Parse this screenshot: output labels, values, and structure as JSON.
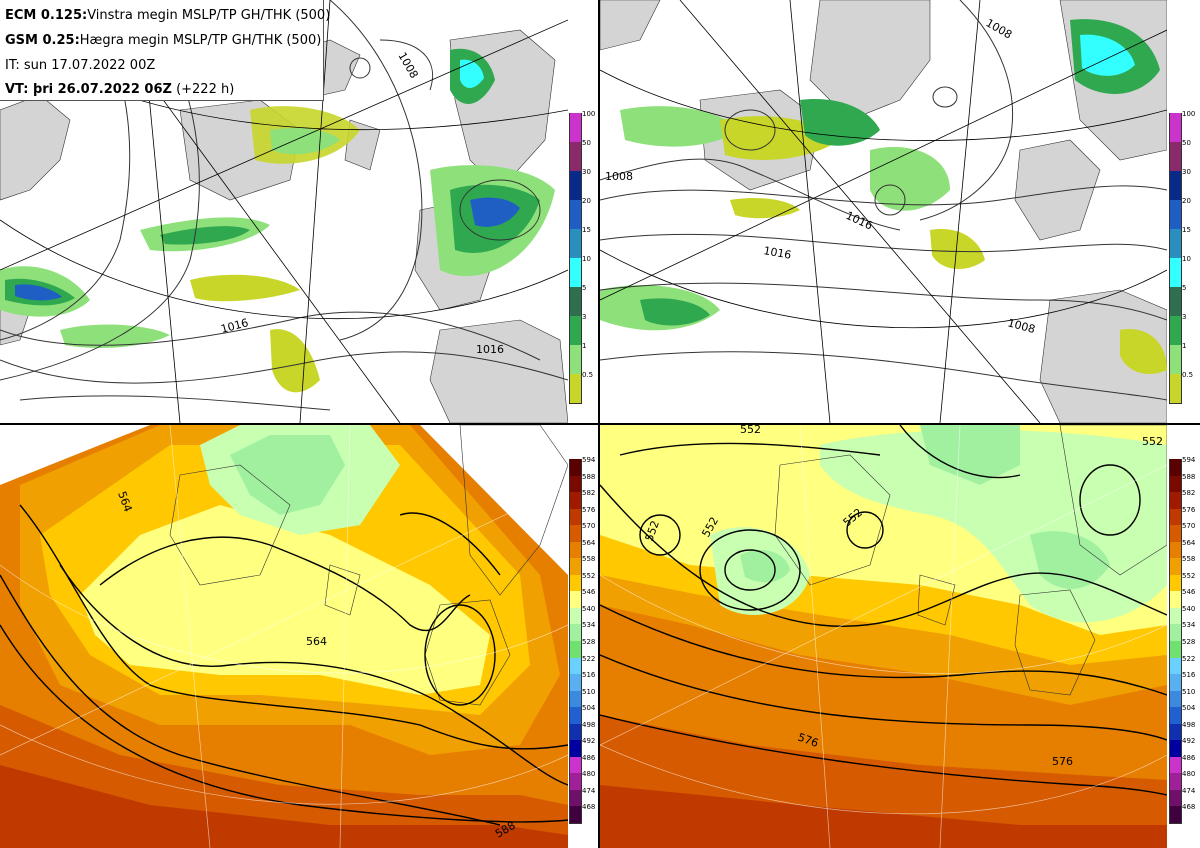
{
  "header": {
    "line1_bold": "ECM 0.125:",
    "line1_text": "Vinstra megin MSLP/TP GH/THK (500)",
    "line2_bold": "GSM 0.25:",
    "line2_text": "Hægra megin MSLP/TP GH/THK (500)",
    "line3_text": "IT: sun 17.07.2022 00Z",
    "line4_bold": "VT: þri 26.07.2022 06Z",
    "line4_text": " (+222 h)"
  },
  "precip_legend": {
    "ticks": [
      "100",
      "50",
      "30",
      "20",
      "15",
      "10",
      "5",
      "3",
      "1",
      "0.5"
    ],
    "colors": [
      "#cc33cc",
      "#8a2a6a",
      "#0a2a8a",
      "#1f5fc4",
      "#2a8fbf",
      "#33ffff",
      "#2f6f4f",
      "#2fa84f",
      "#8ee07a",
      "#c8d62a"
    ]
  },
  "gh_legend": {
    "ticks": [
      "594",
      "588",
      "582",
      "576",
      "570",
      "564",
      "558",
      "552",
      "546",
      "540",
      "534",
      "528",
      "522",
      "516",
      "510",
      "504",
      "498",
      "492",
      "486",
      "480",
      "474",
      "468"
    ],
    "colors": [
      "#5a0000",
      "#7a0a00",
      "#a01a00",
      "#c03a00",
      "#d65a00",
      "#e67e00",
      "#f0a000",
      "#ffc800",
      "#ffff80",
      "#c8ffb0",
      "#a0f0a0",
      "#70e070",
      "#6ad0ff",
      "#58b0f0",
      "#3c8ae0",
      "#2060d0",
      "#1030b0",
      "#0000a0",
      "#cc33cc",
      "#a0209a",
      "#70106a",
      "#400040"
    ]
  },
  "isobar_labels_left": [
    "1008",
    "1016",
    "1016"
  ],
  "isobar_labels_right": [
    "1008",
    "1008",
    "1016",
    "1016",
    "1008"
  ],
  "height_labels_left": [
    "564",
    "564",
    "588"
  ],
  "height_labels_right": [
    "552",
    "552",
    "552",
    "552",
    "552",
    "576",
    "576"
  ],
  "colors": {
    "land": "#d4d4d4",
    "sea": "#ffffff",
    "contour": "#333333",
    "frame": "#000000"
  }
}
